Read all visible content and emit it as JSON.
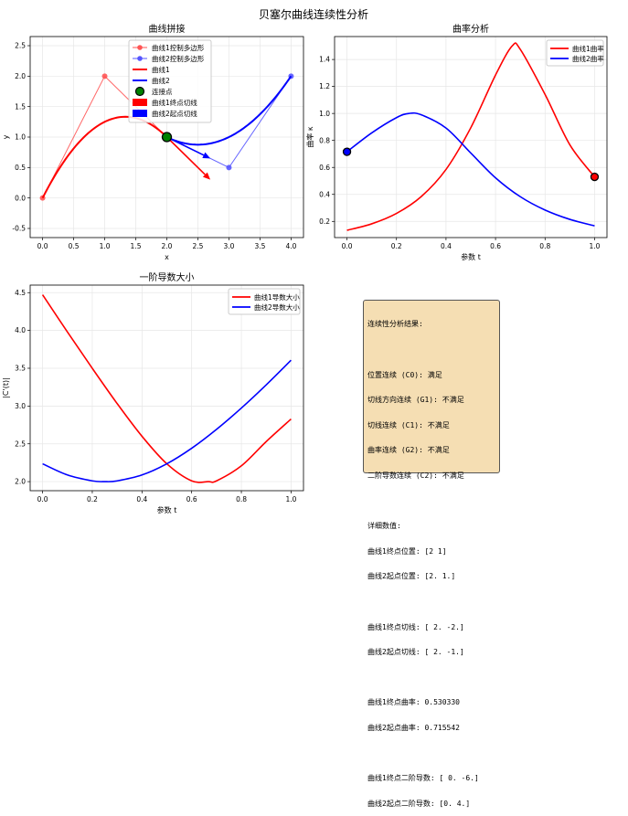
{
  "figure_title": "贝塞尔曲线连续性分析",
  "colors": {
    "curve1": "#ff0000",
    "curve2": "#0000ff",
    "poly1": "#ff5555",
    "poly2": "#5555ff",
    "join": "#008000",
    "box": "#f5deb3"
  },
  "chart_data": [
    {
      "type": "line",
      "title": "曲线拼接",
      "xlabel": "x",
      "ylabel": "y",
      "xlim": [
        -0.2,
        4.2
      ],
      "ylim": [
        -0.65,
        2.65
      ],
      "xticks": [
        0.0,
        0.5,
        1.0,
        1.5,
        2.0,
        2.5,
        3.0,
        3.5,
        4.0
      ],
      "yticks": [
        -0.5,
        0.0,
        0.5,
        1.0,
        1.5,
        2.0,
        2.5
      ],
      "grid": true,
      "legend_position": "top-center",
      "control_polygon_1": {
        "name": "曲线1控制多边形",
        "points": [
          [
            0,
            0
          ],
          [
            1,
            2
          ],
          [
            2,
            1
          ]
        ]
      },
      "control_polygon_2": {
        "name": "曲线2控制多边形",
        "points": [
          [
            2,
            1
          ],
          [
            3,
            0.5
          ],
          [
            4,
            2
          ]
        ]
      },
      "curve1": {
        "name": "曲线1",
        "degree": 2,
        "control_points": [
          [
            0,
            0
          ],
          [
            1,
            2
          ],
          [
            2,
            1
          ]
        ]
      },
      "curve2": {
        "name": "曲线2",
        "degree": 2,
        "control_points": [
          [
            2,
            1
          ],
          [
            3,
            0.5
          ],
          [
            4,
            2
          ]
        ]
      },
      "join_point": {
        "name": "连接点",
        "point": [
          2,
          1
        ]
      },
      "tangent1": {
        "name": "曲线1终点切线",
        "from": [
          2,
          1
        ],
        "to": [
          2.7,
          0.3
        ]
      },
      "tangent2": {
        "name": "曲线2起点切线",
        "from": [
          2,
          1
        ],
        "to": [
          2.7,
          0.65
        ]
      }
    },
    {
      "type": "line",
      "title": "曲率分析",
      "xlabel": "参数 t",
      "ylabel": "曲率 κ",
      "xlim": [
        -0.05,
        1.05
      ],
      "ylim": [
        0.08,
        1.57
      ],
      "xticks": [
        0.0,
        0.2,
        0.4,
        0.6,
        0.8,
        1.0
      ],
      "yticks": [
        0.2,
        0.4,
        0.6,
        0.8,
        1.0,
        1.2,
        1.4
      ],
      "grid": true,
      "legend_position": "top-right",
      "series": [
        {
          "name": "曲线1曲率",
          "x": [
            0.0,
            0.1,
            0.2,
            0.3,
            0.4,
            0.5,
            0.6,
            0.667,
            0.7,
            0.8,
            0.9,
            1.0
          ],
          "values": [
            0.134,
            0.182,
            0.259,
            0.384,
            0.585,
            0.894,
            1.285,
            1.5,
            1.475,
            1.141,
            0.768,
            0.53
          ]
        },
        {
          "name": "曲线2曲率",
          "x": [
            0.0,
            0.1,
            0.2,
            0.25,
            0.3,
            0.4,
            0.5,
            0.6,
            0.7,
            0.8,
            0.9,
            1.0
          ],
          "values": [
            0.716,
            0.856,
            0.969,
            1.0,
            0.99,
            0.892,
            0.707,
            0.523,
            0.383,
            0.284,
            0.215,
            0.167
          ]
        }
      ],
      "end_markers": [
        {
          "series": "曲线1曲率",
          "t": 1.0,
          "value": 0.53
        },
        {
          "series": "曲线2曲率",
          "t": 0.0,
          "value": 0.716
        }
      ]
    },
    {
      "type": "line",
      "title": "一阶导数大小",
      "xlabel": "参数 t",
      "ylabel": "|C'(t)|",
      "xlim": [
        -0.05,
        1.05
      ],
      "ylim": [
        1.88,
        4.6
      ],
      "xticks": [
        0.0,
        0.2,
        0.4,
        0.6,
        0.8,
        1.0
      ],
      "yticks": [
        2.0,
        2.5,
        3.0,
        3.5,
        4.0,
        4.5
      ],
      "grid": true,
      "legend_position": "top-right",
      "series": [
        {
          "name": "曲线1导数大小",
          "x": [
            0.0,
            0.1,
            0.2,
            0.3,
            0.4,
            0.5,
            0.6,
            0.667,
            0.7,
            0.8,
            0.9,
            1.0
          ],
          "values": [
            4.472,
            3.98,
            3.499,
            3.033,
            2.6,
            2.236,
            2.01,
            2.0,
            2.01,
            2.209,
            2.53,
            2.828
          ]
        },
        {
          "name": "曲线2导数大小",
          "x": [
            0.0,
            0.1,
            0.2,
            0.25,
            0.3,
            0.4,
            0.5,
            0.6,
            0.7,
            0.8,
            0.9,
            1.0
          ],
          "values": [
            2.236,
            2.088,
            2.01,
            2.0,
            2.01,
            2.088,
            2.236,
            2.441,
            2.691,
            2.973,
            3.28,
            3.606
          ]
        }
      ]
    }
  ],
  "results_box": {
    "lines": [
      "连续性分析结果:",
      "",
      "位置连续 (C0): 满足",
      "切线方向连续 (G1): 不满足",
      "切线连续 (C1): 不满足",
      "曲率连续 (G2): 不满足",
      "二阶导数连续 (C2): 不满足",
      "",
      "详细数值:",
      "曲线1终点位置: [2 1]",
      "曲线2起点位置: [2. 1.]",
      "",
      "曲线1终点切线: [ 2. -2.]",
      "曲线2起点切线: [ 2. -1.]",
      "",
      "曲线1终点曲率: 0.530330",
      "曲线2起点曲率: 0.715542",
      "",
      "曲线1终点二阶导数: [ 0. -6.]",
      "曲线2起点二阶导数: [0. 4.]"
    ]
  }
}
